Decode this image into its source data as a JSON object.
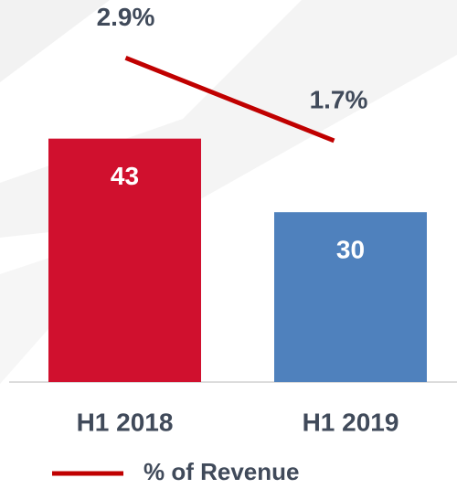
{
  "chart_data": {
    "type": "bar",
    "categories": [
      "H1 2018",
      "H1 2019"
    ],
    "ylim": [
      0,
      67
    ],
    "y2lim": [
      -1.8,
      3.7
    ],
    "series": [
      {
        "type": "bar",
        "values": [
          43,
          30
        ],
        "colors": [
          "#d0102e",
          "#4f81bd"
        ]
      },
      {
        "type": "line",
        "axis": "y2",
        "name": "% of Revenue",
        "color": "#c00000",
        "values": [
          2.9,
          1.7
        ],
        "value_labels": [
          "2.9%",
          "1.7%"
        ]
      }
    ]
  }
}
